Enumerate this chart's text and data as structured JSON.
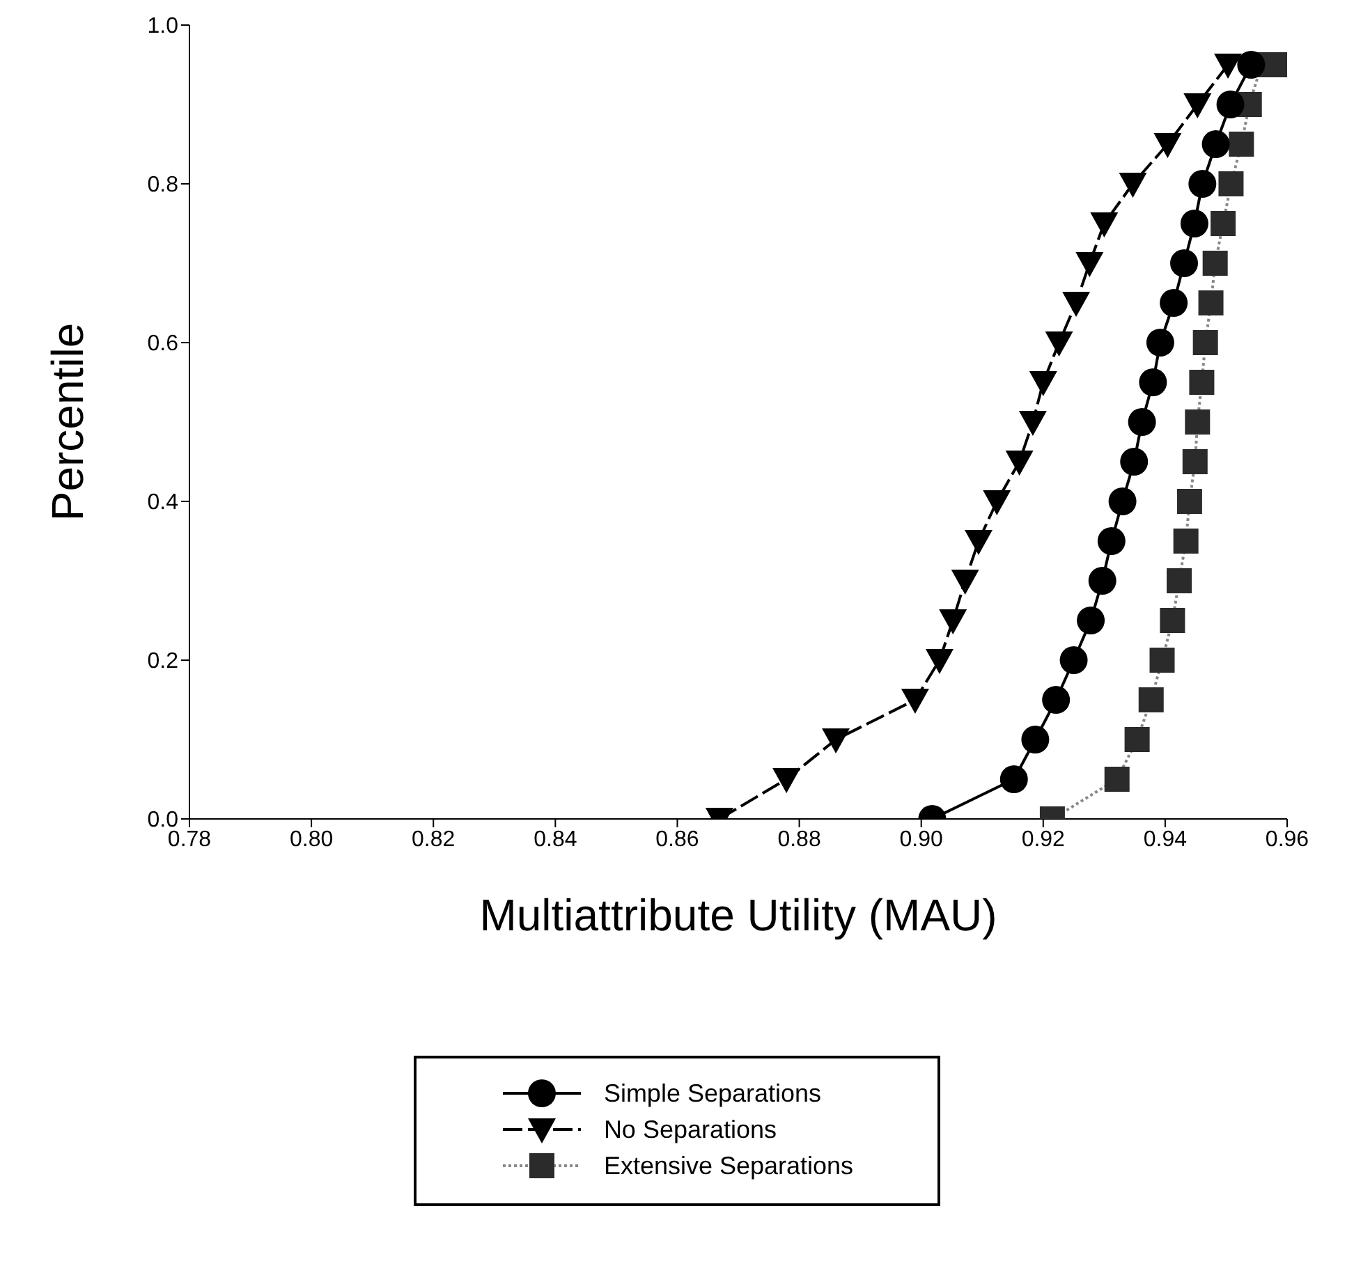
{
  "chart_data": {
    "type": "line",
    "xlabel": "Multiattribute Utility (MAU)",
    "ylabel": "Percentile",
    "xlim": [
      0.78,
      0.96
    ],
    "ylim": [
      0,
      1
    ],
    "xticks": [
      0.78,
      {
        "value": 0.8,
        "label": "0.80"
      },
      0.82,
      0.84,
      0.86,
      0.88,
      {
        "value": 0.9,
        "label": "0.90"
      },
      0.92,
      0.94,
      0.96
    ],
    "yticks": [
      {
        "value": 0,
        "label": "0.0"
      },
      0.2,
      0.4,
      0.6,
      0.8,
      {
        "value": 1,
        "label": "1.0"
      }
    ],
    "legend": "bottom",
    "series": [
      {
        "name": "Simple Separations",
        "color": "#000000",
        "marker": "circle",
        "line_style": "solid",
        "x": [
          0.9018,
          0.9152,
          0.9187,
          0.9221,
          0.925,
          0.9278,
          0.9297,
          0.9312,
          0.933,
          0.9349,
          0.9362,
          0.938,
          0.9392,
          0.9414,
          0.9431,
          0.9448,
          0.9461,
          0.9483,
          0.9507,
          0.9541
        ],
        "values": [
          0,
          0.05,
          0.1,
          0.15,
          0.2,
          0.25,
          0.3,
          0.35,
          0.4,
          0.45,
          0.5,
          0.55,
          0.6,
          0.65,
          0.7,
          0.75,
          0.8,
          0.85,
          0.9,
          0.95
        ]
      },
      {
        "name": "No Separations",
        "color": "#000000",
        "marker": "triangle",
        "line_style": "dashed",
        "x": [
          0.8669,
          0.8779,
          0.886,
          0.899,
          0.903,
          0.9052,
          0.9072,
          0.9094,
          0.9124,
          0.9161,
          0.9183,
          0.92,
          0.9226,
          0.9254,
          0.9276,
          0.93,
          0.9347,
          0.9404,
          0.9453,
          0.9503
        ],
        "values": [
          0,
          0.05,
          0.1,
          0.15,
          0.2,
          0.25,
          0.3,
          0.35,
          0.4,
          0.45,
          0.5,
          0.55,
          0.6,
          0.65,
          0.7,
          0.75,
          0.8,
          0.85,
          0.9,
          0.95
        ]
      },
      {
        "name": "Extensive Separations",
        "color": "#2b2b2b",
        "marker": "square",
        "line_style": "dotted",
        "x": [
          0.9215,
          0.9321,
          0.9354,
          0.9377,
          0.9395,
          0.9412,
          0.9423,
          0.9434,
          0.944,
          0.9449,
          0.9453,
          0.946,
          0.9466,
          0.9475,
          0.9482,
          0.9495,
          0.9508,
          0.9525,
          0.9538,
          0.9558,
          0.958
        ],
        "values": [
          0,
          0.05,
          0.1,
          0.15,
          0.2,
          0.25,
          0.3,
          0.35,
          0.4,
          0.45,
          0.5,
          0.55,
          0.6,
          0.65,
          0.7,
          0.75,
          0.8,
          0.85,
          0.9,
          0.95,
          0.95
        ]
      }
    ]
  }
}
